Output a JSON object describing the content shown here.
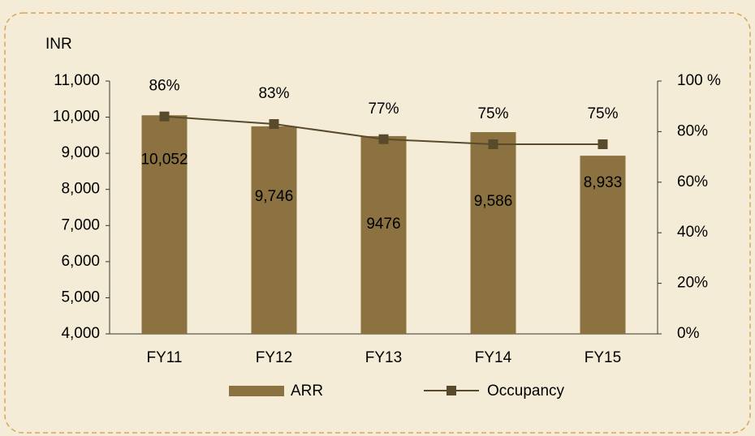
{
  "chart_data": {
    "type": "bar_line",
    "y_label": "INR",
    "categories": [
      "FY11",
      "FY12",
      "FY13",
      "FY14",
      "FY15"
    ],
    "series": [
      {
        "name": "ARR",
        "color": "#8b7240",
        "values": [
          10052,
          9746,
          9476,
          9586,
          8933
        ],
        "value_labels": [
          "10,052",
          "9,746",
          "9476",
          "9,586",
          "8,933"
        ]
      },
      {
        "name": "Occupancy",
        "color": "#5a4a2c",
        "axis": "y2",
        "values": [
          86,
          83,
          77,
          75,
          75
        ],
        "value_labels": [
          "86%",
          "83%",
          "77%",
          "75%",
          "75%"
        ]
      }
    ],
    "ylim": [
      4000,
      11000
    ],
    "yticks": [
      {
        "value": 4000,
        "label": "4,000"
      },
      {
        "value": 5000,
        "label": "5,000"
      },
      {
        "value": 6000,
        "label": "6,000"
      },
      {
        "value": 7000,
        "label": "7,000"
      },
      {
        "value": 8000,
        "label": "8,000"
      },
      {
        "value": 9000,
        "label": "9,000"
      },
      {
        "value": 10000,
        "label": "10,000"
      },
      {
        "value": 11000,
        "label": "11,000"
      }
    ],
    "y2lim": [
      0,
      100
    ],
    "y2ticks": [
      {
        "value": 0,
        "label": "0%"
      },
      {
        "value": 20,
        "label": "20%"
      },
      {
        "value": 40,
        "label": "40%"
      },
      {
        "value": 60,
        "label": "60%"
      },
      {
        "value": 80,
        "label": "80%"
      },
      {
        "value": 100,
        "label": "100 %"
      }
    ],
    "legend": "bottom"
  }
}
